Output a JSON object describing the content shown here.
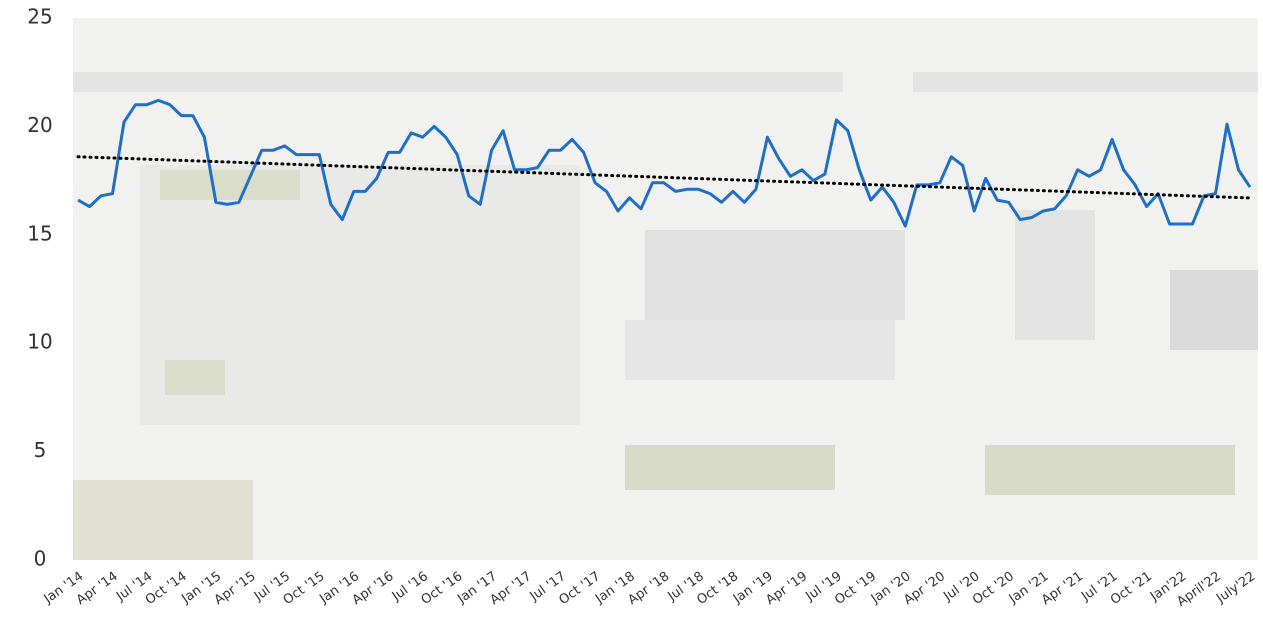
{
  "chart_data": {
    "type": "line",
    "categories": [
      "Jan '14",
      null,
      null,
      "Apr '14",
      null,
      null,
      "Jul '14",
      null,
      null,
      "Oct '14",
      null,
      null,
      "Jan '15",
      null,
      null,
      "Apr '15",
      null,
      null,
      "Jul '15",
      null,
      null,
      "Oct '15",
      null,
      null,
      "Jan '16",
      null,
      null,
      "Apr '16",
      null,
      null,
      "Jul '16",
      null,
      null,
      "Oct '16",
      null,
      null,
      "Jan '17",
      null,
      null,
      "Apr '17",
      null,
      null,
      "Jul '17",
      null,
      null,
      "Oct '17",
      null,
      null,
      "Jan '18",
      null,
      null,
      "Apr '18",
      null,
      null,
      "Jul '18",
      null,
      null,
      "Oct '18",
      null,
      null,
      "Jan '19",
      null,
      null,
      "Apr '19",
      null,
      null,
      "Jul '19",
      null,
      null,
      "Oct '19",
      null,
      null,
      "Jan '20",
      null,
      null,
      "Apr '20",
      null,
      null,
      "Jul '20",
      null,
      null,
      "Oct '20",
      null,
      null,
      "Jan '21",
      null,
      null,
      "Apr '21",
      null,
      null,
      "Jul '21",
      null,
      null,
      "Oct '21",
      null,
      null,
      "Jan'22",
      null,
      null,
      "April'22",
      null,
      null,
      "July'22"
    ],
    "series": [
      {
        "color": "#1f6fc5",
        "values": [
          16.6,
          16.3,
          16.8,
          16.9,
          20.2,
          21.0,
          21.0,
          21.2,
          21.0,
          20.5,
          20.5,
          19.5,
          16.5,
          16.4,
          16.5,
          17.7,
          18.9,
          18.9,
          19.1,
          18.7,
          18.7,
          18.7,
          16.4,
          15.7,
          17.0,
          17.0,
          17.6,
          18.8,
          18.8,
          19.7,
          19.5,
          20.0,
          19.5,
          18.7,
          16.8,
          16.4,
          18.9,
          19.8,
          18.0,
          18.0,
          18.1,
          18.9,
          18.9,
          19.4,
          18.8,
          17.4,
          17.0,
          16.1,
          16.7,
          16.2,
          17.4,
          17.4,
          17.0,
          17.1,
          17.1,
          16.9,
          16.5,
          17.0,
          16.5,
          17.1,
          19.5,
          18.5,
          17.7,
          18.0,
          17.5,
          17.8,
          20.3,
          19.8,
          18.0,
          16.6,
          17.2,
          16.5,
          15.4,
          17.3,
          17.3,
          17.4,
          18.6,
          18.2,
          16.1,
          17.6,
          16.6,
          16.5,
          15.7,
          15.8,
          16.1,
          16.2,
          16.8,
          18.0,
          17.7,
          18.0,
          19.4,
          18.0,
          17.3,
          16.3,
          16.9,
          15.5,
          15.5,
          15.5,
          16.8,
          16.9,
          20.1,
          18.0,
          17.2
        ]
      }
    ],
    "trendline": {
      "color": "#000000",
      "values": [
        18.6,
        16.7
      ]
    },
    "ylim": [
      0,
      25
    ],
    "yticks": [
      0,
      5,
      10,
      15,
      20,
      25
    ],
    "grid": false
  }
}
